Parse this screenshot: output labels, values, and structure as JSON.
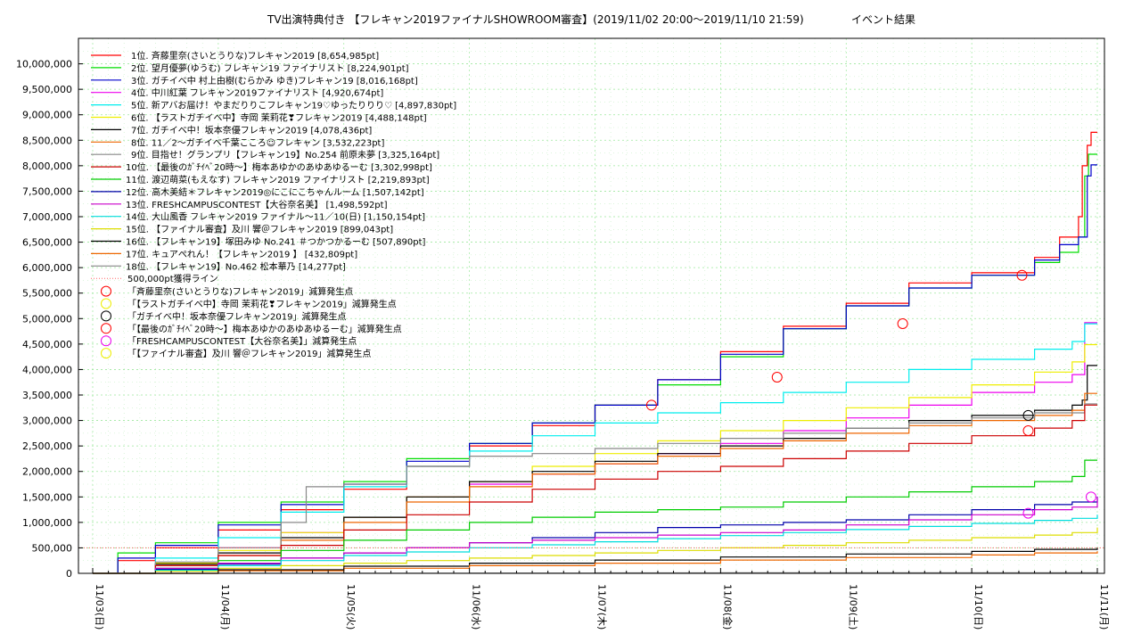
{
  "chart_data": {
    "type": "line",
    "title": "TV出演特典付き 【フレキャン2019ファイナルSHOWROOM審査】(2019/11/02 20:00〜2019/11/10 21:59)",
    "subtitle": "イベント結果",
    "xlabel": "",
    "ylabel": "",
    "ylim": [
      0,
      10500000
    ],
    "y_ticks": [
      0,
      500000,
      1000000,
      1500000,
      2000000,
      2500000,
      3000000,
      3500000,
      4000000,
      4500000,
      5000000,
      5500000,
      6000000,
      6500000,
      7000000,
      7500000,
      8000000,
      8500000,
      9000000,
      9500000,
      10000000
    ],
    "y_tick_labels": [
      "0",
      "500,000",
      "1,000,000",
      "1,500,000",
      "2,000,000",
      "2,500,000",
      "3,000,000",
      "3,500,000",
      "4,000,000",
      "4,500,000",
      "5,000,000",
      "5,500,000",
      "6,000,000",
      "6,500,000",
      "7,000,000",
      "7,500,000",
      "8,000,000",
      "8,500,000",
      "9,000,000",
      "9,500,000",
      "10,000,000"
    ],
    "x_range": [
      "2019-11-02 20:00",
      "2019-11-10 21:59"
    ],
    "x_ticks": [
      "11/03(日)",
      "11/04(月)",
      "11/05(火)",
      "11/06(水)",
      "11/07(木)",
      "11/08(金)",
      "11/09(土)",
      "11/10(日)",
      "11/11(月)"
    ],
    "grid": true,
    "legend_position": "top-left",
    "series": [
      {
        "name": "1位. 斉藤里奈(さいとうりな)フレキャン2019 [8,654,985pt]",
        "color": "#ff0000",
        "x": [
          0,
          0.2,
          0.5,
          1,
          1.5,
          2,
          2.5,
          3,
          3.5,
          4,
          4.5,
          5,
          5.5,
          6,
          6.5,
          7,
          7.5,
          7.7,
          7.85,
          7.88,
          7.92,
          7.95,
          8.0
        ],
        "values": [
          0,
          250000,
          500000,
          850000,
          1250000,
          1650000,
          2100000,
          2500000,
          2900000,
          3300000,
          3800000,
          4350000,
          4850000,
          5300000,
          5700000,
          5900000,
          6200000,
          6600000,
          7000000,
          8000000,
          8400000,
          8654985,
          8654985
        ]
      },
      {
        "name": "2位. 望月優夢(ゆうむ) フレキャン19 ファイナリスト [8,224,901pt]",
        "color": "#00dd00",
        "x": [
          0,
          0.2,
          0.5,
          1,
          1.5,
          2,
          2.5,
          3,
          3.5,
          4,
          4.5,
          5,
          5.5,
          6,
          6.5,
          7,
          7.5,
          7.7,
          7.85,
          7.9,
          7.93,
          8.0
        ],
        "values": [
          0,
          400000,
          600000,
          1000000,
          1400000,
          1800000,
          2250000,
          2550000,
          2950000,
          3300000,
          3700000,
          4250000,
          4800000,
          5250000,
          5600000,
          5850000,
          6100000,
          6300000,
          6600000,
          7800000,
          8224901,
          8224901
        ]
      },
      {
        "name": "3位. ガチイベ中 村上由樹(むらかみ ゆき)フレキャン19 [8,016,168pt]",
        "color": "#0000cc",
        "x": [
          0,
          0.2,
          0.5,
          1,
          1.5,
          2,
          2.5,
          3,
          3.5,
          4,
          4.5,
          5,
          5.5,
          6,
          6.5,
          7,
          7.5,
          7.7,
          7.85,
          7.92,
          7.95,
          8.0
        ],
        "values": [
          0,
          300000,
          550000,
          950000,
          1350000,
          1750000,
          2200000,
          2550000,
          2950000,
          3300000,
          3800000,
          4300000,
          4800000,
          5250000,
          5600000,
          5850000,
          6150000,
          6450000,
          6600000,
          7800000,
          8016168,
          8016168
        ]
      },
      {
        "name": "4位. 中川紅葉 フレキャン2019ファイナリスト [4,920,674pt]",
        "color": "#ee00ee",
        "x": [
          0,
          0.5,
          1,
          1.5,
          2,
          2.5,
          3,
          3.5,
          4,
          4.5,
          5,
          5.5,
          6,
          6.5,
          7,
          7.5,
          7.8,
          7.9,
          8.0
        ],
        "values": [
          0,
          200000,
          500000,
          800000,
          1100000,
          1500000,
          1750000,
          1950000,
          2150000,
          2350000,
          2550000,
          2800000,
          3050000,
          3300000,
          3550000,
          3750000,
          3900000,
          4920674,
          4920674
        ]
      },
      {
        "name": "5位. 新アバお届け！やまだりりこフレキャン19♡ゆったりりり♡ [4,897,830pt]",
        "color": "#00eeee",
        "x": [
          0,
          0.5,
          1,
          1.5,
          2,
          2.5,
          3,
          3.5,
          4,
          4.5,
          5,
          5.5,
          6,
          6.5,
          7,
          7.5,
          7.8,
          7.9,
          8.0
        ],
        "values": [
          0,
          300000,
          700000,
          1200000,
          1700000,
          2100000,
          2400000,
          2700000,
          2950000,
          3150000,
          3350000,
          3550000,
          3750000,
          4000000,
          4200000,
          4400000,
          4550000,
          4897830,
          4897830
        ]
      },
      {
        "name": "6位. 【ラストガチイベ中】寺岡 茉莉花❣フレキャン2019 [4,488,148pt]",
        "color": "#eeee00",
        "x": [
          0,
          0.5,
          1,
          1.5,
          2,
          2.5,
          3,
          3.5,
          4,
          4.5,
          5,
          5.5,
          6,
          6.5,
          7,
          7.5,
          7.8,
          7.9,
          8.0
        ],
        "values": [
          0,
          200000,
          450000,
          800000,
          1100000,
          1500000,
          1800000,
          2100000,
          2350000,
          2600000,
          2800000,
          3000000,
          3250000,
          3450000,
          3700000,
          3950000,
          4150000,
          4488148,
          4488148
        ]
      },
      {
        "name": "7位. ガチイベ中！坂本奈優フレキャン2019 [4,078,436pt]",
        "color": "#000000",
        "x": [
          0,
          0.5,
          1,
          1.5,
          2,
          2.5,
          3,
          3.5,
          4,
          4.5,
          5,
          5.5,
          6,
          6.5,
          7,
          7.5,
          7.8,
          7.88,
          7.92,
          8.0
        ],
        "values": [
          0,
          180000,
          400000,
          700000,
          1100000,
          1500000,
          1800000,
          2000000,
          2200000,
          2350000,
          2500000,
          2650000,
          2850000,
          3000000,
          3100000,
          3200000,
          3300000,
          3400000,
          4078436,
          4078436
        ]
      },
      {
        "name": "8位. 11／2〜ガチイベ千葉こころ☺フレキャン [3,532,223pt]",
        "color": "#ee6600",
        "x": [
          0,
          0.5,
          1,
          1.5,
          2,
          2.5,
          3,
          3.5,
          4,
          4.5,
          5,
          5.5,
          6,
          6.5,
          7,
          7.5,
          7.8,
          7.9,
          8.0
        ],
        "values": [
          0,
          150000,
          350000,
          650000,
          1000000,
          1400000,
          1700000,
          1950000,
          2150000,
          2300000,
          2450000,
          2600000,
          2750000,
          2900000,
          3000000,
          3100000,
          3200000,
          3532223,
          3532223
        ]
      },
      {
        "name": "9位. 目指せ！グランプリ【フレキャン19】No.254 前原未夢 [3,325,164pt]",
        "color": "#888888",
        "x": [
          0,
          0.5,
          1,
          1.5,
          1.7,
          2,
          2.5,
          3,
          3.5,
          4,
          4.5,
          5,
          5.5,
          6,
          6.5,
          7,
          7.5,
          7.9,
          8.0
        ],
        "values": [
          0,
          220000,
          500000,
          1000000,
          1700000,
          1750000,
          2100000,
          2300000,
          2350000,
          2450000,
          2550000,
          2650000,
          2750000,
          2850000,
          2950000,
          3050000,
          3150000,
          3325164,
          3325164
        ]
      },
      {
        "name": "10位. 【最後のｶﾞﾁｲﾍﾞ20時〜】梅本あゆかのあゆあゆるーむ [3,302,998pt]",
        "color": "#cc0000",
        "x": [
          0,
          0.5,
          1,
          1.5,
          2,
          2.5,
          3,
          3.5,
          4,
          4.5,
          5,
          5.5,
          6,
          6.5,
          7,
          7.5,
          7.8,
          7.9,
          8.0
        ],
        "values": [
          0,
          150000,
          350000,
          550000,
          850000,
          1150000,
          1400000,
          1650000,
          1850000,
          2000000,
          2100000,
          2250000,
          2400000,
          2550000,
          2700000,
          2850000,
          3000000,
          3302998,
          3302998
        ]
      },
      {
        "name": "11位. 渡辺萌菜(もえなす) フレキャン2019 ファイナリスト [2,219,893pt]",
        "color": "#00cc00",
        "x": [
          0,
          0.5,
          1,
          1.5,
          2,
          2.5,
          3,
          3.5,
          4,
          4.5,
          5,
          5.5,
          6,
          6.5,
          7,
          7.5,
          7.8,
          7.9,
          8.0
        ],
        "values": [
          0,
          100000,
          250000,
          450000,
          650000,
          850000,
          1000000,
          1100000,
          1200000,
          1250000,
          1300000,
          1400000,
          1500000,
          1600000,
          1700000,
          1800000,
          1900000,
          2219893,
          2219893
        ]
      },
      {
        "name": "12位. 高木美結＊フレキャン2019◎にこにこちゃんルーム [1,507,142pt]",
        "color": "#0000aa",
        "x": [
          0,
          0.5,
          1,
          1.5,
          2,
          2.5,
          3,
          3.5,
          4,
          4.5,
          5,
          5.5,
          6,
          6.5,
          7,
          7.5,
          7.8,
          8.0
        ],
        "values": [
          0,
          80000,
          180000,
          300000,
          400000,
          500000,
          600000,
          700000,
          800000,
          900000,
          950000,
          1000000,
          1050000,
          1150000,
          1250000,
          1350000,
          1400000,
          1507142
        ]
      },
      {
        "name": "13位. FRESHCAMPUSCONTEST【大谷奈名美】 [1,498,592pt]",
        "color": "#cc00cc",
        "x": [
          0,
          0.5,
          1,
          1.5,
          2,
          2.5,
          3,
          3.5,
          4,
          4.5,
          5,
          5.5,
          6,
          6.5,
          7,
          7.5,
          7.8,
          8.0
        ],
        "values": [
          0,
          100000,
          200000,
          300000,
          400000,
          500000,
          600000,
          650000,
          700000,
          750000,
          800000,
          850000,
          950000,
          1050000,
          1150000,
          1250000,
          1300000,
          1498592
        ]
      },
      {
        "name": "14位. 大山風香 フレキャン2019 ファイナル〜11／10(日) [1,150,154pt]",
        "color": "#00dddd",
        "x": [
          0,
          0.5,
          1,
          1.5,
          2,
          2.5,
          3,
          3.5,
          4,
          4.5,
          5,
          5.5,
          6,
          6.5,
          7,
          7.5,
          7.8,
          8.0
        ],
        "values": [
          0,
          60000,
          150000,
          250000,
          350000,
          420000,
          500000,
          560000,
          620000,
          680000,
          740000,
          800000,
          860000,
          920000,
          980000,
          1040000,
          1080000,
          1150154
        ]
      },
      {
        "name": "15位. 【ファイナル審査】及川 響＠フレキャン2019 [899,043pt]",
        "color": "#dddd00",
        "x": [
          0,
          0.5,
          1,
          1.5,
          2,
          2.5,
          3,
          3.5,
          4,
          4.5,
          5,
          5.5,
          6,
          6.5,
          7,
          7.5,
          7.8,
          8.0
        ],
        "values": [
          0,
          40000,
          100000,
          150000,
          200000,
          250000,
          300000,
          350000,
          400000,
          450000,
          500000,
          550000,
          600000,
          650000,
          700000,
          750000,
          800000,
          899043
        ]
      },
      {
        "name": "16位. 【フレキャン19】塚田みゆ No.241 ＃つかつかるーむ [507,890pt]",
        "color": "#000000",
        "x": [
          0,
          1,
          2,
          3,
          4,
          5,
          6,
          7,
          7.5,
          8.0
        ],
        "values": [
          0,
          70000,
          140000,
          200000,
          260000,
          320000,
          380000,
          430000,
          470000,
          507890
        ]
      },
      {
        "name": "17位. キュアぺれん！【フレキャン2019 】 [432,809pt]",
        "color": "#ee6600",
        "x": [
          0,
          1,
          2,
          3,
          4,
          5,
          6,
          7,
          7.5,
          8.0
        ],
        "values": [
          0,
          50000,
          100000,
          150000,
          200000,
          260000,
          310000,
          360000,
          400000,
          432809
        ]
      },
      {
        "name": "18位. 【フレキャン19】No.462 松本華乃 [14,277pt]",
        "color": "#888888",
        "x": [
          0,
          1,
          2,
          3,
          4,
          5,
          6,
          7,
          8.0
        ],
        "values": [
          0,
          2000,
          4000,
          6000,
          8000,
          10000,
          12000,
          13000,
          14277
        ]
      }
    ],
    "threshold_line": {
      "name": "500,000pt獲得ライン",
      "value": 500000,
      "color": "#ff6666"
    },
    "penalty_points": [
      {
        "name": "「斉藤里奈(さいとうりな)フレキャン2019」減算発生点",
        "color": "#ff0000",
        "points": [
          [
            4.45,
            3300000
          ],
          [
            7.4,
            5850000
          ]
        ]
      },
      {
        "name": "「【ラストガチイベ中】寺岡 茉莉花❣フレキャン2019」減算発生点",
        "color": "#eeee00",
        "points": []
      },
      {
        "name": "「ガチイベ中！坂本奈優フレキャン2019」減算発生点",
        "color": "#000000",
        "points": [
          [
            7.45,
            3100000
          ]
        ]
      },
      {
        "name": "「【最後のｶﾞﾁｲﾍﾞ20時〜】梅本あゆかのあゆあゆるーむ」減算発生点",
        "color": "#ff0000",
        "points": [
          [
            5.45,
            3850000
          ],
          [
            6.45,
            4900000
          ],
          [
            7.45,
            2800000
          ]
        ]
      },
      {
        "name": "「FRESHCAMPUSCONTEST【大谷奈名美】」減算発生点",
        "color": "#ee00ee",
        "points": [
          [
            7.45,
            1180000
          ],
          [
            7.95,
            1498592
          ]
        ]
      },
      {
        "name": "「【ファイナル審査】及川 響＠フレキャン2019」減算発生点",
        "color": "#eeee00",
        "points": []
      }
    ]
  }
}
